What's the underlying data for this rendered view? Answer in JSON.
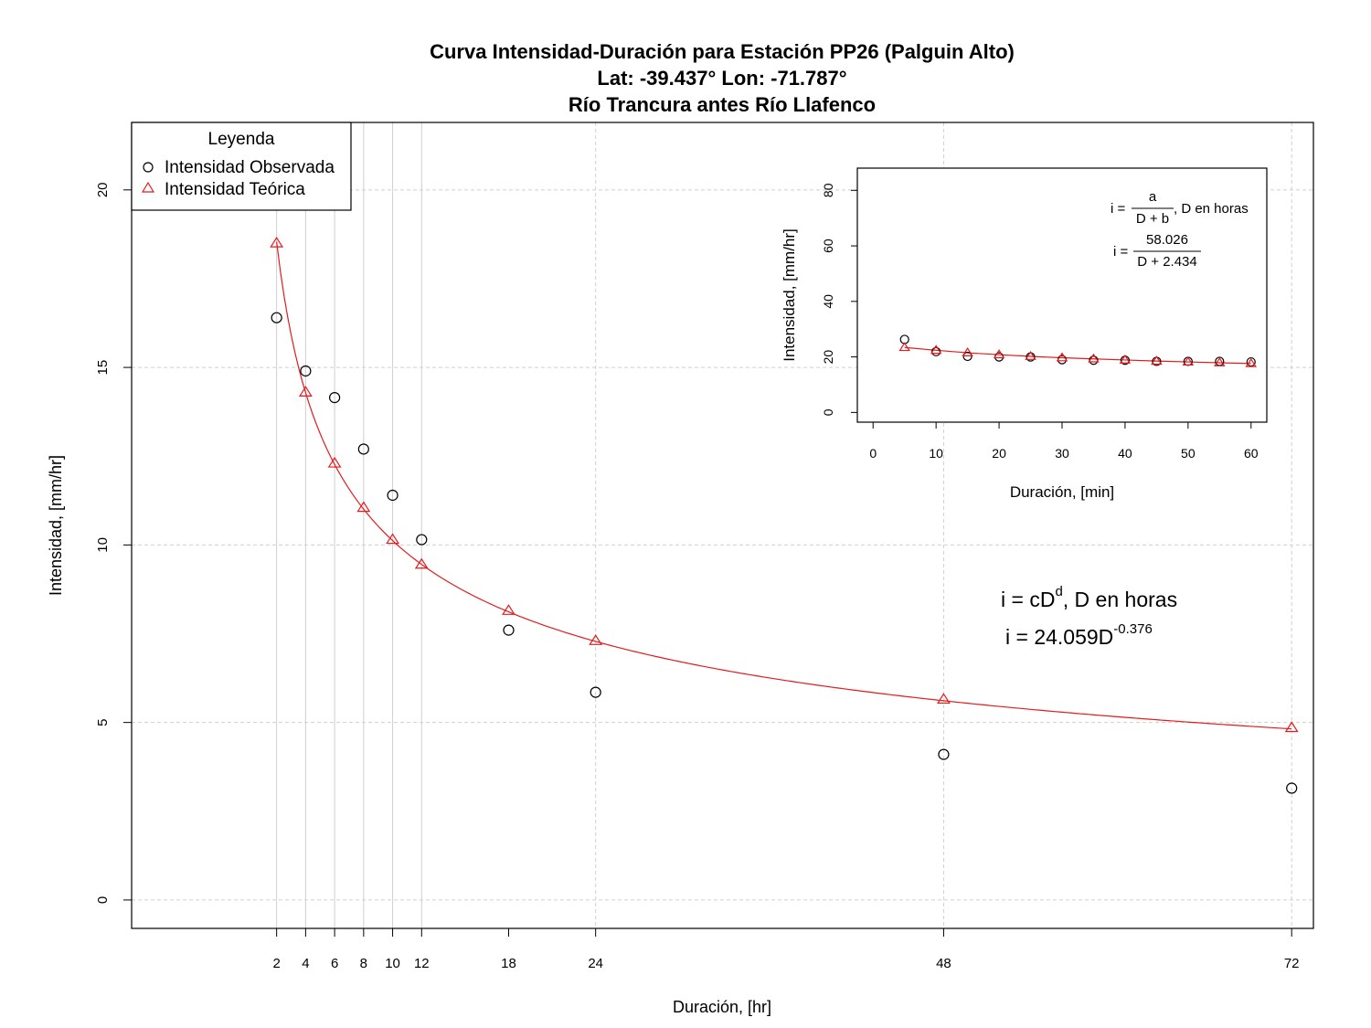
{
  "colors": {
    "observed": "#000000",
    "theoretical": "#e41a1c",
    "grid": "#cfcfcf"
  },
  "chart_data": [
    {
      "type": "scatter",
      "title": "Curva Intensidad-Duración para Estación PP26 (Palguin Alto)",
      "subtitle_1": "Lat: -39.437° Lon: -71.787°",
      "subtitle_2": "Río Trancura antes Río Llafenco",
      "xlabel": "Duración, [hr]",
      "ylabel": "Intensidad, [mm/hr]",
      "xlim": [
        -8,
        73.5
      ],
      "ylim": [
        -0.8,
        21.9
      ],
      "xticks": [
        2,
        4,
        6,
        8,
        10,
        12,
        18,
        24,
        48,
        72
      ],
      "yticks": [
        0,
        5,
        10,
        15,
        20
      ],
      "grid": true,
      "legend": {
        "position": "top-left",
        "title": "Leyenda",
        "entries": [
          "Intensidad Observada",
          "Intensidad Teórica"
        ]
      },
      "series": [
        {
          "name": "Intensidad Observada",
          "marker": "circle",
          "x": [
            2,
            4,
            6,
            8,
            10,
            12,
            18,
            24,
            48,
            72
          ],
          "y": [
            16.4,
            14.9,
            14.15,
            12.7,
            11.4,
            10.15,
            7.6,
            5.85,
            4.1,
            3.15
          ]
        },
        {
          "name": "Intensidad Teórica",
          "marker": "triangle",
          "x": [
            2,
            4,
            6,
            8,
            10,
            12,
            18,
            24,
            48,
            72
          ],
          "y": [
            18.5,
            14.3,
            12.3,
            11.05,
            10.15,
            9.45,
            8.15,
            7.3,
            5.65,
            4.85
          ]
        }
      ],
      "fit": {
        "c": 24.059,
        "d": -0.376
      },
      "equation": {
        "general": "i = cD",
        "general_sup": "d",
        "general_suffix": ", D en horas",
        "fitted": "i = 24.059D",
        "fitted_sup": "-0.376"
      }
    },
    {
      "type": "scatter",
      "xlabel": "Duración, [min]",
      "ylabel": "Intensidad, [mm/hr]",
      "xlim": [
        -2.5,
        62.5
      ],
      "ylim": [
        -3.5,
        88
      ],
      "xticks": [
        0,
        10,
        20,
        30,
        40,
        50,
        60
      ],
      "yticks": [
        0,
        20,
        40,
        60,
        80
      ],
      "series": [
        {
          "name": "Intensidad Observada",
          "marker": "circle",
          "x": [
            5,
            10,
            15,
            20,
            25,
            30,
            35,
            40,
            45,
            50,
            55,
            60
          ],
          "y": [
            26.3,
            21.9,
            20.2,
            20.0,
            20.0,
            19.0,
            18.8,
            18.8,
            18.4,
            18.4,
            18.4,
            18.2
          ]
        },
        {
          "name": "Intensidad Teórica",
          "marker": "triangle",
          "x": [
            5,
            10,
            15,
            20,
            25,
            30,
            35,
            40,
            45,
            50,
            55,
            60
          ],
          "y": [
            23.4,
            22.4,
            21.5,
            20.8,
            20.2,
            19.7,
            19.3,
            18.9,
            18.5,
            18.2,
            17.9,
            17.6
          ]
        }
      ],
      "fit": {
        "a": 58.026,
        "b": 2.434
      },
      "equation": {
        "general_lhs": "i =",
        "general_num": "a",
        "general_den": "D + b",
        "general_suffix": ", D en horas",
        "fitted_lhs": "i =",
        "fitted_num": "58.026",
        "fitted_den": "D + 2.434"
      }
    }
  ]
}
